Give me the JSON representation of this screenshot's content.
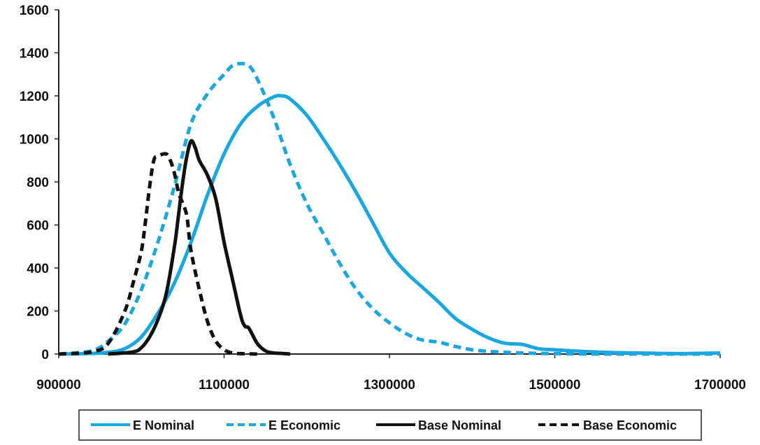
{
  "chart_data": {
    "type": "line",
    "title": "",
    "xlabel": "",
    "ylabel": "",
    "xlim": [
      900000,
      1700000
    ],
    "ylim": [
      0,
      1600
    ],
    "x_ticks": [
      "900000",
      "1100000",
      "1300000",
      "1500000",
      "1700000"
    ],
    "x_tick_values": [
      900000,
      1100000,
      1300000,
      1500000,
      1700000
    ],
    "y_ticks": [
      "0",
      "200",
      "400",
      "600",
      "800",
      "1000",
      "1200",
      "1400",
      "1600"
    ],
    "y_tick_values": [
      0,
      200,
      400,
      600,
      800,
      1000,
      1200,
      1400,
      1600
    ],
    "grid": false,
    "legend_position": "bottom",
    "series": [
      {
        "name": "E Nominal",
        "color": "#1aa7e0",
        "dash": "solid",
        "x": [
          900000,
          940000,
          960000,
          980000,
          1000000,
          1020000,
          1040000,
          1060000,
          1080000,
          1100000,
          1120000,
          1140000,
          1160000,
          1170000,
          1180000,
          1200000,
          1220000,
          1240000,
          1260000,
          1280000,
          1300000,
          1320000,
          1340000,
          1360000,
          1380000,
          1400000,
          1420000,
          1440000,
          1460000,
          1480000,
          1500000,
          1520000,
          1560000,
          1600000,
          1650000,
          1700000
        ],
        "y": [
          0,
          3,
          8,
          25,
          80,
          190,
          330,
          520,
          740,
          930,
          1070,
          1150,
          1195,
          1200,
          1185,
          1110,
          1000,
          880,
          750,
          610,
          470,
          380,
          310,
          240,
          165,
          115,
          75,
          50,
          45,
          25,
          20,
          15,
          8,
          5,
          2,
          5
        ]
      },
      {
        "name": "E Economic",
        "color": "#1aa7e0",
        "dash": "dashed",
        "x": [
          900000,
          940000,
          960000,
          980000,
          1000000,
          1020000,
          1040000,
          1060000,
          1080000,
          1100000,
          1110000,
          1120000,
          1130000,
          1140000,
          1160000,
          1180000,
          1200000,
          1220000,
          1240000,
          1260000,
          1280000,
          1300000,
          1320000,
          1340000,
          1360000,
          1380000,
          1400000,
          1420000,
          1440000,
          1460000,
          1480000,
          1500000,
          1550000,
          1600000,
          1700000
        ],
        "y": [
          0,
          15,
          60,
          140,
          300,
          520,
          780,
          1070,
          1210,
          1300,
          1340,
          1350,
          1340,
          1280,
          1100,
          880,
          700,
          560,
          420,
          300,
          210,
          145,
          95,
          65,
          55,
          35,
          20,
          12,
          8,
          5,
          3,
          2,
          0,
          0,
          0
        ]
      },
      {
        "name": "Base Nominal",
        "color": "#111111",
        "dash": "solid",
        "x": [
          960000,
          990000,
          1000000,
          1010000,
          1020000,
          1030000,
          1040000,
          1045000,
          1050000,
          1055000,
          1060000,
          1065000,
          1070000,
          1080000,
          1090000,
          1100000,
          1110000,
          1120000,
          1125000,
          1130000,
          1140000,
          1150000,
          1160000,
          1170000,
          1180000
        ],
        "y": [
          0,
          10,
          30,
          80,
          160,
          280,
          500,
          650,
          800,
          920,
          990,
          960,
          900,
          830,
          720,
          520,
          350,
          180,
          130,
          120,
          50,
          15,
          5,
          3,
          0
        ]
      },
      {
        "name": "Base Economic",
        "color": "#111111",
        "dash": "dashed",
        "x": [
          900000,
          940000,
          960000,
          980000,
          990000,
          1000000,
          1005000,
          1010000,
          1015000,
          1020000,
          1030000,
          1035000,
          1040000,
          1045000,
          1050000,
          1055000,
          1060000,
          1070000,
          1080000,
          1090000,
          1100000,
          1110000,
          1120000,
          1140000
        ],
        "y": [
          0,
          10,
          50,
          200,
          330,
          480,
          620,
          780,
          900,
          920,
          930,
          900,
          840,
          750,
          700,
          640,
          480,
          300,
          150,
          60,
          20,
          5,
          2,
          0
        ]
      }
    ]
  }
}
